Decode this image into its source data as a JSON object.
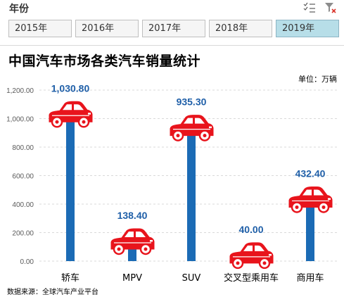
{
  "slicer": {
    "title": "年份",
    "items": [
      {
        "label": "2015年",
        "selected": false
      },
      {
        "label": "2016年",
        "selected": false
      },
      {
        "label": "2017年",
        "selected": false
      },
      {
        "label": "2018年",
        "selected": false
      },
      {
        "label": "2019年",
        "selected": true
      }
    ],
    "icons": [
      "multi-select-icon",
      "clear-filter-icon"
    ]
  },
  "chart": {
    "unit_label": "单位：万辆",
    "source_label": "数据来源：全球汽车产业平台"
  },
  "colors": {
    "bar": "#1b6bb5",
    "car": "#e8141c",
    "value_label": "#1f5fa8",
    "selected_slicer": "#b7dee8"
  },
  "chart_data": {
    "type": "bar",
    "title": "中国汽车市场各类汽车销量统计",
    "categories": [
      "轿车",
      "MPV",
      "SUV",
      "交叉型乘用车",
      "商用车"
    ],
    "values": [
      1030.8,
      138.4,
      935.3,
      40.0,
      432.4
    ],
    "value_labels": [
      "1,030.80",
      "138.40",
      "935.30",
      "40.00",
      "432.40"
    ],
    "ylim": [
      0,
      1200
    ],
    "yticks": [
      "0.00",
      "200.00",
      "400.00",
      "600.00",
      "800.00",
      "1,000.00",
      "1,200.00"
    ],
    "grid": true,
    "marker": "car-icon"
  }
}
